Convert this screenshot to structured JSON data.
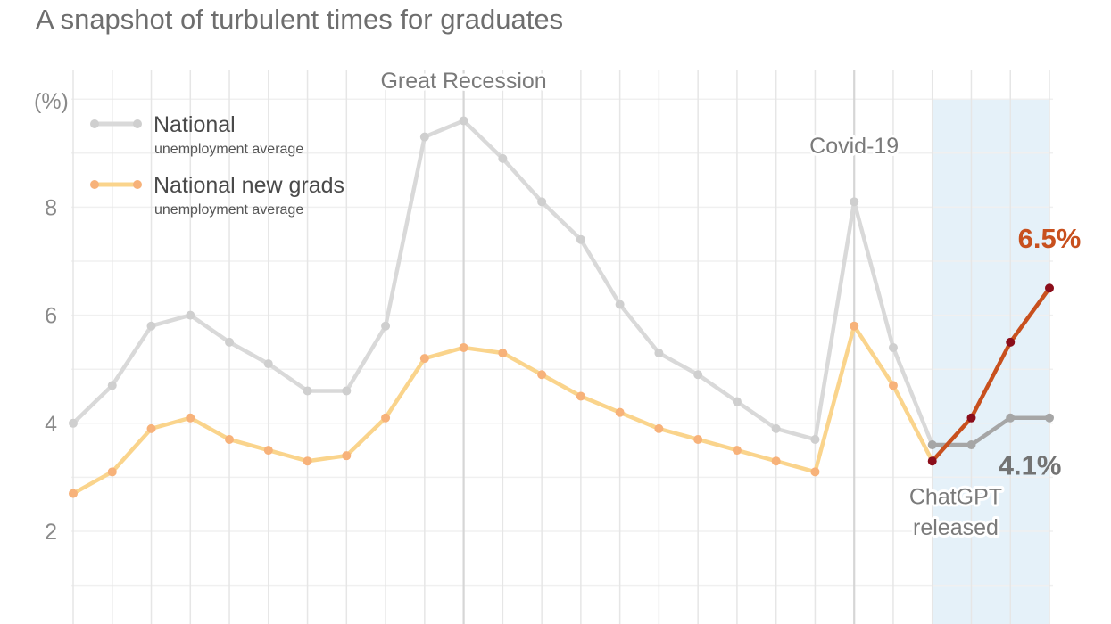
{
  "chart_data": {
    "type": "line",
    "title": "A snapshot of turbulent times for graduates",
    "ylabel": "(%)",
    "ylim": [
      0.9,
      10.6
    ],
    "yticks": [
      {
        "value": 2,
        "label": "2"
      },
      {
        "value": 4,
        "label": "4"
      },
      {
        "value": 6,
        "label": "6"
      },
      {
        "value": 8,
        "label": "8"
      }
    ],
    "x": [
      0,
      1,
      2,
      3,
      4,
      5,
      6,
      7,
      8,
      9,
      10,
      11,
      12,
      13,
      14,
      15,
      16,
      17,
      18,
      19,
      20,
      21,
      22,
      23,
      24,
      25
    ],
    "grid": true,
    "legend_position": "top-left",
    "series": [
      {
        "name": "National",
        "subname": "unemployment average",
        "color": "#d9d9d9",
        "recent_color": "#a6a6a6",
        "values": [
          4.0,
          4.7,
          5.8,
          6.0,
          5.5,
          5.1,
          4.6,
          4.6,
          5.8,
          9.3,
          9.6,
          8.9,
          8.1,
          7.4,
          6.2,
          5.3,
          4.9,
          4.4,
          3.9,
          3.7,
          8.1,
          5.4,
          3.6,
          3.6,
          4.1,
          4.1
        ]
      },
      {
        "name": "National new grads",
        "subname": "unemployment average",
        "color": "#fad48c",
        "marker_color": "#f7b27a",
        "recent_color": "#c8501e",
        "recent_marker_color": "#8b0d1a",
        "values": [
          2.7,
          3.1,
          3.9,
          4.1,
          3.7,
          3.5,
          3.3,
          3.4,
          4.1,
          5.2,
          5.4,
          5.3,
          4.9,
          4.5,
          4.2,
          3.9,
          3.7,
          3.5,
          3.3,
          3.1,
          5.8,
          4.7,
          3.3,
          4.1,
          5.5,
          6.5
        ]
      }
    ],
    "highlight_range": [
      22,
      25
    ],
    "highlight_color": "#e5f1f9",
    "annotations": [
      {
        "id": "great-recession",
        "text": "Great Recession",
        "x": 10,
        "y": 10.2
      },
      {
        "id": "covid",
        "text": "Covid-19",
        "x": 20,
        "y": 9.0
      },
      {
        "id": "chatgpt-1",
        "text": "ChatGPT",
        "x": 22.6,
        "y": 2.5
      },
      {
        "id": "chatgpt-2",
        "text": "released",
        "x": 22.6,
        "y": 1.93
      }
    ],
    "end_labels": [
      {
        "id": "grads-end",
        "text": "6.5%",
        "color": "#c8501e",
        "x": 25,
        "y": 7.25
      },
      {
        "id": "national-end",
        "text": "4.1%",
        "color": "#737373",
        "x": 24.5,
        "y": 3.05
      }
    ]
  }
}
